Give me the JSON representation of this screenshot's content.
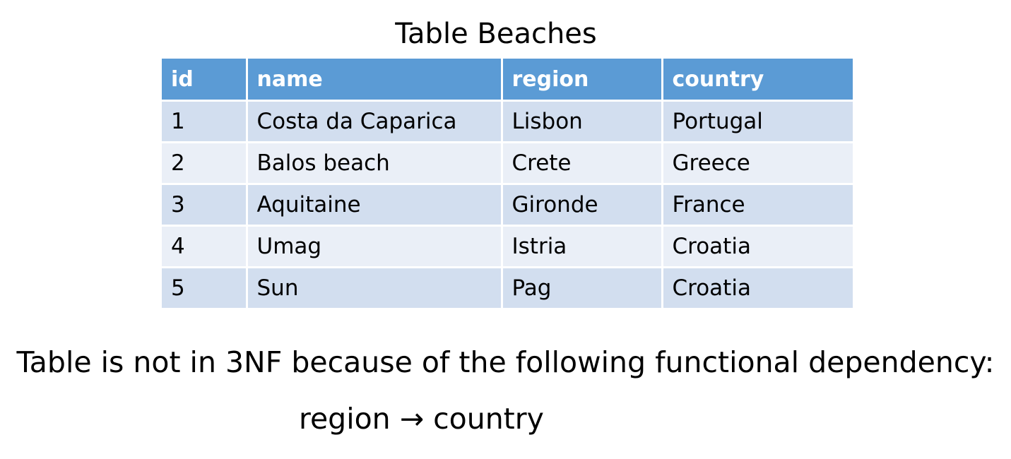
{
  "title": "Table Beaches",
  "table": {
    "headers": [
      "id",
      "name",
      "region",
      "country"
    ],
    "rows": [
      [
        "1",
        "Costa da Caparica",
        "Lisbon",
        "Portugal"
      ],
      [
        "2",
        "Balos beach",
        "Crete",
        "Greece"
      ],
      [
        "3",
        "Aquitaine",
        "Gironde",
        "France"
      ],
      [
        "4",
        "Umag",
        "Istria",
        "Croatia"
      ],
      [
        "5",
        "Sun",
        "Pag",
        "Croatia"
      ]
    ]
  },
  "note": "Table is not in 3NF because of the following functional dependency:",
  "dependency": "region → country",
  "colors": {
    "header_bg": "#5b9bd5",
    "row_odd_bg": "#d2deef",
    "row_even_bg": "#eaeff7"
  }
}
